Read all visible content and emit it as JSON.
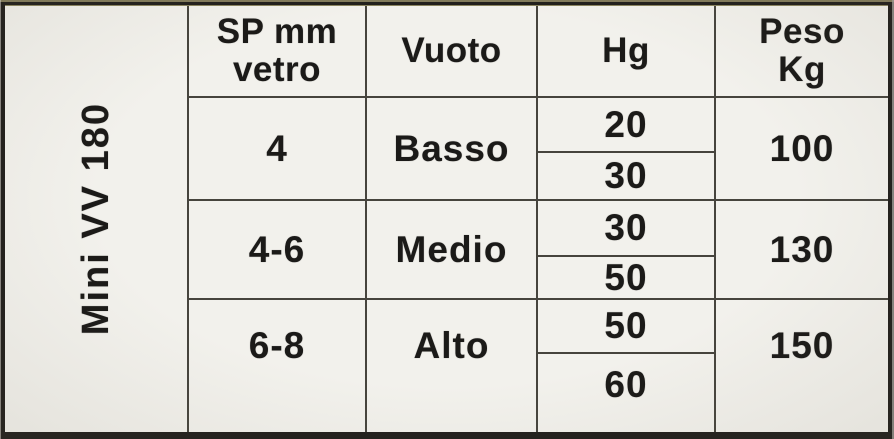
{
  "colors": {
    "paper": "#f2f1ec",
    "grid_line": "#46443d",
    "outer_border": "#211f1c",
    "text": "#1b1a18",
    "scan_edge_tint": "#8a845f"
  },
  "table": {
    "model_label": "Mini VV 180",
    "headers": {
      "sp_mm_vetro": "SP mm\nvetro",
      "vuoto": "Vuoto",
      "hg": "Hg",
      "peso_kg": "Peso\nKg"
    },
    "rows": [
      {
        "sp_mm_vetro": "4",
        "vuoto": "Basso",
        "hg": [
          "20",
          "30"
        ],
        "peso_kg": "100"
      },
      {
        "sp_mm_vetro": "4-6",
        "vuoto": "Medio",
        "hg": [
          "30",
          "50"
        ],
        "peso_kg": "130"
      },
      {
        "sp_mm_vetro": "6-8",
        "vuoto": "Alto",
        "hg": [
          "50",
          "60"
        ],
        "peso_kg": "150"
      }
    ]
  }
}
